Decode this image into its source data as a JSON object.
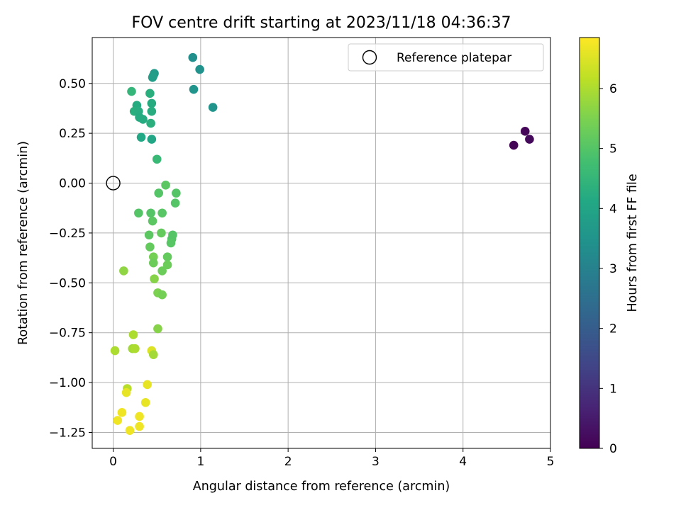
{
  "chart_data": {
    "type": "scatter",
    "title": "FOV centre drift starting at 2023/11/18 04:36:37",
    "xlabel": "Angular distance from reference (arcmin)",
    "ylabel": "Rotation from reference (arcmin)",
    "xlim": [
      -0.24,
      5.0
    ],
    "ylim": [
      -1.33,
      0.73
    ],
    "xticks": [
      0,
      1,
      2,
      3,
      4,
      5
    ],
    "xtick_labels": [
      "0",
      "1",
      "2",
      "3",
      "4",
      "5"
    ],
    "yticks": [
      0.5,
      0.25,
      0.0,
      -0.25,
      -0.5,
      -0.75,
      -1.0,
      -1.25
    ],
    "ytick_labels": [
      "0.50",
      "0.25",
      "0.00",
      "−0.25",
      "−0.50",
      "−0.75",
      "−1.00",
      "−1.25"
    ],
    "grid": true,
    "legend": {
      "position": "top-right",
      "entries": [
        "Reference platepar"
      ]
    },
    "reference_point": {
      "x": 0,
      "y": 0
    },
    "colorbar": {
      "label": "Hours from first FF file",
      "colormap": "viridis",
      "range": [
        0,
        6.85
      ],
      "ticks": [
        0,
        1,
        2,
        3,
        4,
        5,
        6
      ],
      "tick_labels": [
        "0",
        "1",
        "2",
        "3",
        "4",
        "5",
        "6"
      ]
    },
    "points": [
      {
        "x": 4.58,
        "y": 0.19,
        "c": 0.05
      },
      {
        "x": 4.71,
        "y": 0.26,
        "c": 0.1
      },
      {
        "x": 4.76,
        "y": 0.22,
        "c": 0.15
      },
      {
        "x": 0.91,
        "y": 0.63,
        "c": 3.4
      },
      {
        "x": 0.99,
        "y": 0.57,
        "c": 3.45
      },
      {
        "x": 0.92,
        "y": 0.47,
        "c": 3.5
      },
      {
        "x": 1.14,
        "y": 0.38,
        "c": 3.55
      },
      {
        "x": 0.47,
        "y": 0.55,
        "c": 3.7
      },
      {
        "x": 0.46,
        "y": 0.54,
        "c": 3.75
      },
      {
        "x": 0.45,
        "y": 0.53,
        "c": 3.8
      },
      {
        "x": 0.21,
        "y": 0.46,
        "c": 4.5
      },
      {
        "x": 0.42,
        "y": 0.45,
        "c": 4.3
      },
      {
        "x": 0.44,
        "y": 0.4,
        "c": 4.2
      },
      {
        "x": 0.27,
        "y": 0.39,
        "c": 4.2
      },
      {
        "x": 0.24,
        "y": 0.36,
        "c": 4.3
      },
      {
        "x": 0.29,
        "y": 0.36,
        "c": 4.25
      },
      {
        "x": 0.44,
        "y": 0.36,
        "c": 4.25
      },
      {
        "x": 0.3,
        "y": 0.33,
        "c": 4.2
      },
      {
        "x": 0.34,
        "y": 0.32,
        "c": 4.2
      },
      {
        "x": 0.43,
        "y": 0.3,
        "c": 4.3
      },
      {
        "x": 0.32,
        "y": 0.23,
        "c": 4.1
      },
      {
        "x": 0.44,
        "y": 0.22,
        "c": 4.05
      },
      {
        "x": 0.5,
        "y": 0.12,
        "c": 4.6
      },
      {
        "x": 0.6,
        "y": -0.01,
        "c": 5.1
      },
      {
        "x": 0.52,
        "y": -0.05,
        "c": 5.0
      },
      {
        "x": 0.72,
        "y": -0.05,
        "c": 5.0
      },
      {
        "x": 0.71,
        "y": -0.1,
        "c": 5.0
      },
      {
        "x": 0.29,
        "y": -0.15,
        "c": 5.0
      },
      {
        "x": 0.43,
        "y": -0.15,
        "c": 5.0
      },
      {
        "x": 0.56,
        "y": -0.15,
        "c": 5.05
      },
      {
        "x": 0.45,
        "y": -0.19,
        "c": 5.1
      },
      {
        "x": 0.55,
        "y": -0.25,
        "c": 5.2
      },
      {
        "x": 0.41,
        "y": -0.26,
        "c": 5.1
      },
      {
        "x": 0.68,
        "y": -0.26,
        "c": 5.0
      },
      {
        "x": 0.67,
        "y": -0.28,
        "c": 5.0
      },
      {
        "x": 0.66,
        "y": -0.3,
        "c": 5.05
      },
      {
        "x": 0.42,
        "y": -0.32,
        "c": 5.2
      },
      {
        "x": 0.62,
        "y": -0.37,
        "c": 5.2
      },
      {
        "x": 0.46,
        "y": -0.37,
        "c": 5.4
      },
      {
        "x": 0.46,
        "y": -0.4,
        "c": 5.3
      },
      {
        "x": 0.62,
        "y": -0.41,
        "c": 5.3
      },
      {
        "x": 0.56,
        "y": -0.44,
        "c": 5.3
      },
      {
        "x": 0.12,
        "y": -0.44,
        "c": 5.7
      },
      {
        "x": 0.47,
        "y": -0.48,
        "c": 5.6
      },
      {
        "x": 0.51,
        "y": -0.55,
        "c": 5.5
      },
      {
        "x": 0.56,
        "y": -0.56,
        "c": 5.4
      },
      {
        "x": 0.51,
        "y": -0.73,
        "c": 5.6
      },
      {
        "x": 0.23,
        "y": -0.76,
        "c": 6.0
      },
      {
        "x": 0.22,
        "y": -0.83,
        "c": 5.9
      },
      {
        "x": 0.25,
        "y": -0.83,
        "c": 6.0
      },
      {
        "x": 0.02,
        "y": -0.84,
        "c": 6.0
      },
      {
        "x": 0.44,
        "y": -0.84,
        "c": 6.5
      },
      {
        "x": 0.46,
        "y": -0.86,
        "c": 5.9
      },
      {
        "x": 0.16,
        "y": -1.03,
        "c": 6.1
      },
      {
        "x": 0.39,
        "y": -1.01,
        "c": 6.6
      },
      {
        "x": 0.15,
        "y": -1.05,
        "c": 6.6
      },
      {
        "x": 0.37,
        "y": -1.1,
        "c": 6.6
      },
      {
        "x": 0.1,
        "y": -1.15,
        "c": 6.7
      },
      {
        "x": 0.3,
        "y": -1.17,
        "c": 6.7
      },
      {
        "x": 0.05,
        "y": -1.19,
        "c": 6.7
      },
      {
        "x": 0.3,
        "y": -1.22,
        "c": 6.7
      },
      {
        "x": 0.19,
        "y": -1.24,
        "c": 6.7
      }
    ]
  }
}
